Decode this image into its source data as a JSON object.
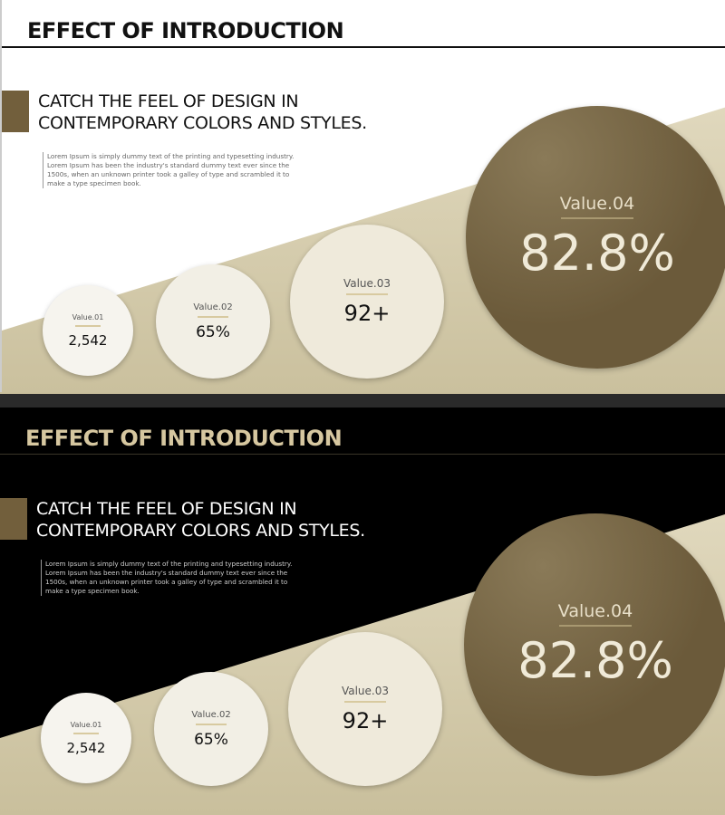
{
  "slides": [
    {
      "title": "EFFECT OF INTRODUCTION",
      "headline_1": "CATCH THE FEEL OF DESIGN IN",
      "headline_2": "CONTEMPORARY COLORS AND STYLES.",
      "body": "Lorem Ipsum is simply dummy text of the printing and typesetting industry. Lorem Ipsum has been the industry's standard dummy text ever since the 1500s, when an unknown printer took a galley of type and scrambled it to make a type specimen book.",
      "values": [
        {
          "label": "Value.01",
          "value": "2,542"
        },
        {
          "label": "Value.02",
          "value": "65%"
        },
        {
          "label": "Value.03",
          "value": "92+"
        },
        {
          "label": "Value.04",
          "value": "82.8%"
        }
      ]
    },
    {
      "title": "EFFECT OF INTRODUCTION",
      "headline_1": "CATCH THE FEEL OF DESIGN IN",
      "headline_2": "CONTEMPORARY COLORS AND STYLES.",
      "body": "Lorem Ipsum is simply dummy text of the printing and typesetting industry. Lorem Ipsum has been the industry's standard dummy text ever since the 1500s, when an unknown printer took a galley of type and scrambled it to make a type specimen book.",
      "values": [
        {
          "label": "Value.01",
          "value": "2,542"
        },
        {
          "label": "Value.02",
          "value": "65%"
        },
        {
          "label": "Value.03",
          "value": "92+"
        },
        {
          "label": "Value.04",
          "value": "82.8%"
        }
      ]
    }
  ],
  "colors": {
    "accent": "#725f3c",
    "beige": "#d3caa8",
    "dark_title": "#d6c7a0"
  }
}
